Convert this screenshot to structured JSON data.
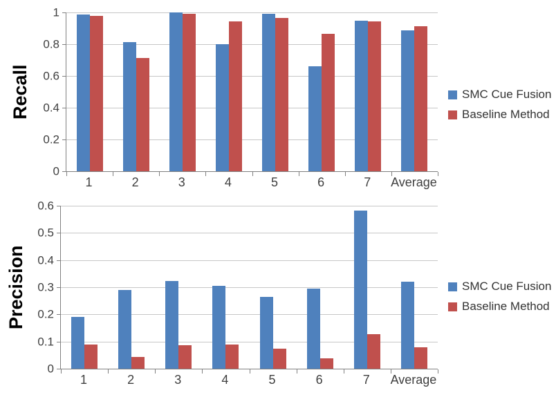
{
  "colors": {
    "series_blue": "#4F81BD",
    "series_red": "#C0504D",
    "gridline": "#C6C6C6",
    "axis": "#7F7F7F",
    "tick_text": "#3F3F3F",
    "axis_title_text": "#000000",
    "legend_text": "#333333",
    "background": "#FFFFFF"
  },
  "chart_data": [
    {
      "type": "bar",
      "title": "",
      "ylabel": "Recall",
      "xlabel": "",
      "categories": [
        "1",
        "2",
        "3",
        "4",
        "5",
        "6",
        "7",
        "Average"
      ],
      "yticks": [
        "0",
        "0.2",
        "0.4",
        "0.6",
        "0.8",
        "1"
      ],
      "ylim": [
        0,
        1
      ],
      "grid": true,
      "legend_position": "right",
      "series": [
        {
          "name": "SMC Cue Fusion",
          "color": "#4F81BD",
          "values": [
            0.985,
            0.815,
            1.0,
            0.8,
            0.99,
            0.66,
            0.95,
            0.885
          ]
        },
        {
          "name": "Baseline Method",
          "color": "#C0504D",
          "values": [
            0.98,
            0.715,
            0.99,
            0.945,
            0.965,
            0.865,
            0.945,
            0.915
          ]
        }
      ]
    },
    {
      "type": "bar",
      "title": "",
      "ylabel": "Precision",
      "xlabel": "",
      "categories": [
        "1",
        "2",
        "3",
        "4",
        "5",
        "6",
        "7",
        "Average"
      ],
      "yticks": [
        "0",
        "0.1",
        "0.2",
        "0.3",
        "0.4",
        "0.5",
        "0.6"
      ],
      "ylim": [
        0,
        0.6
      ],
      "grid": true,
      "legend_position": "right",
      "series": [
        {
          "name": "SMC Cue Fusion",
          "color": "#4F81BD",
          "values": [
            0.19,
            0.29,
            0.322,
            0.305,
            0.265,
            0.295,
            0.583,
            0.321
          ]
        },
        {
          "name": "Baseline Method",
          "color": "#C0504D",
          "values": [
            0.09,
            0.042,
            0.086,
            0.089,
            0.074,
            0.037,
            0.128,
            0.078
          ]
        }
      ]
    }
  ]
}
